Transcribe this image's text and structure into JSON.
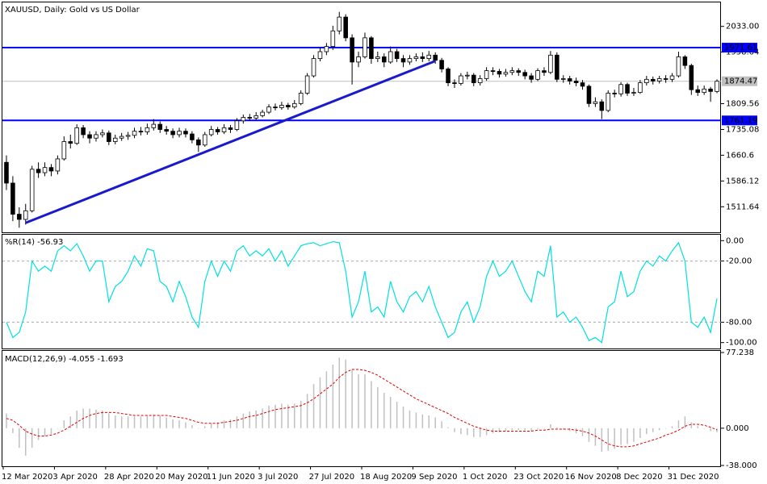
{
  "chart_data": [
    {
      "type": "candlestick",
      "title": "XAUUSD, Daily:  Gold vs US Dollar",
      "categories": [
        "12 Mar 2020",
        null,
        null,
        null,
        null,
        null,
        null,
        null,
        "3 Apr 2020",
        null,
        null,
        null,
        null,
        null,
        null,
        null,
        "28 Apr 2020",
        null,
        null,
        null,
        null,
        null,
        null,
        null,
        "20 May 2020",
        null,
        null,
        null,
        null,
        null,
        null,
        null,
        "11 Jun 2020",
        null,
        null,
        null,
        null,
        null,
        null,
        null,
        "3 Jul 2020",
        null,
        null,
        null,
        null,
        null,
        null,
        null,
        "27 Jul 2020",
        null,
        null,
        null,
        null,
        null,
        null,
        null,
        "18 Aug 2020",
        null,
        null,
        null,
        null,
        null,
        null,
        null,
        "9 Sep 2020",
        null,
        null,
        null,
        null,
        null,
        null,
        null,
        "1 Oct 2020",
        null,
        null,
        null,
        null,
        null,
        null,
        null,
        "23 Oct 2020",
        null,
        null,
        null,
        null,
        null,
        null,
        null,
        "16 Nov 2020",
        null,
        null,
        null,
        null,
        null,
        null,
        null,
        "8 Dec 2020",
        null,
        null,
        null,
        null,
        null,
        null,
        null,
        "31 Dec 2020",
        null,
        null,
        null,
        null,
        null,
        null,
        null
      ],
      "open": [
        1640,
        1580,
        1490,
        1475,
        1500,
        1620,
        1610,
        1625,
        1615,
        1650,
        1700,
        1695,
        1740,
        1720,
        1710,
        1720,
        1725,
        1700,
        1710,
        1715,
        1718,
        1730,
        1728,
        1740,
        1750,
        1735,
        1730,
        1720,
        1730,
        1722,
        1705,
        1690,
        1720,
        1735,
        1728,
        1740,
        1735,
        1760,
        1770,
        1768,
        1775,
        1785,
        1800,
        1798,
        1805,
        1800,
        1810,
        1840,
        1890,
        1940,
        1960,
        1975,
        2020,
        2060,
        2000,
        1930,
        1945,
        2000,
        1940,
        1945,
        1930,
        1960,
        1940,
        1930,
        1940,
        1945,
        1940,
        1950,
        1935,
        1910,
        1870,
        1868,
        1890,
        1892,
        1870,
        1882,
        1905,
        1903,
        1895,
        1900,
        1905,
        1900,
        1890,
        1880,
        1905,
        1900,
        1950,
        1880,
        1882,
        1875,
        1870,
        1860,
        1810,
        1815,
        1790,
        1840,
        1838,
        1865,
        1840,
        1842,
        1870,
        1880,
        1875,
        1882,
        1880,
        1890,
        1945,
        1920,
        1850,
        1842,
        1852,
        1845
      ],
      "high": [
        1660,
        1600,
        1510,
        1520,
        1630,
        1640,
        1640,
        1635,
        1660,
        1715,
        1720,
        1750,
        1748,
        1730,
        1730,
        1735,
        1732,
        1720,
        1725,
        1728,
        1740,
        1742,
        1752,
        1765,
        1758,
        1745,
        1738,
        1740,
        1738,
        1730,
        1712,
        1728,
        1745,
        1742,
        1750,
        1748,
        1768,
        1778,
        1780,
        1785,
        1792,
        1808,
        1810,
        1815,
        1812,
        1820,
        1848,
        1898,
        1950,
        1972,
        1985,
        2035,
        2075,
        2068,
        2010,
        1960,
        2015,
        2005,
        1960,
        1955,
        1975,
        1968,
        1950,
        1950,
        1955,
        1958,
        1962,
        1958,
        1942,
        1915,
        1880,
        1898,
        1902,
        1898,
        1892,
        1915,
        1915,
        1910,
        1910,
        1915,
        1912,
        1908,
        1898,
        1912,
        1915,
        1962,
        1958,
        1892,
        1890,
        1885,
        1878,
        1865,
        1828,
        1822,
        1848,
        1850,
        1872,
        1870,
        1855,
        1878,
        1890,
        1888,
        1890,
        1892,
        1898,
        1960,
        1950,
        1925,
        1862,
        1862,
        1858,
        1880
      ],
      "low": [
        1560,
        1470,
        1451,
        1460,
        1495,
        1595,
        1600,
        1600,
        1605,
        1645,
        1680,
        1690,
        1710,
        1695,
        1700,
        1712,
        1690,
        1692,
        1702,
        1705,
        1710,
        1718,
        1720,
        1732,
        1725,
        1720,
        1710,
        1712,
        1712,
        1695,
        1670,
        1685,
        1715,
        1720,
        1722,
        1725,
        1730,
        1752,
        1760,
        1762,
        1770,
        1780,
        1790,
        1792,
        1792,
        1795,
        1805,
        1835,
        1885,
        1932,
        1950,
        1965,
        2010,
        1990,
        1865,
        1915,
        1940,
        1925,
        1930,
        1915,
        1925,
        1930,
        1915,
        1922,
        1932,
        1930,
        1932,
        1925,
        1900,
        1860,
        1855,
        1862,
        1880,
        1860,
        1862,
        1876,
        1892,
        1885,
        1888,
        1892,
        1890,
        1880,
        1870,
        1875,
        1890,
        1895,
        1872,
        1870,
        1865,
        1860,
        1850,
        1800,
        1800,
        1765,
        1785,
        1828,
        1830,
        1832,
        1832,
        1838,
        1862,
        1865,
        1868,
        1870,
        1872,
        1885,
        1910,
        1835,
        1832,
        1835,
        1815,
        1840
      ],
      "close": [
        1580,
        1490,
        1475,
        1500,
        1620,
        1610,
        1625,
        1615,
        1650,
        1700,
        1695,
        1740,
        1720,
        1710,
        1720,
        1725,
        1700,
        1710,
        1715,
        1718,
        1730,
        1728,
        1740,
        1750,
        1735,
        1730,
        1720,
        1730,
        1722,
        1705,
        1690,
        1720,
        1735,
        1728,
        1740,
        1735,
        1760,
        1770,
        1768,
        1775,
        1785,
        1800,
        1798,
        1805,
        1800,
        1810,
        1840,
        1890,
        1940,
        1960,
        1975,
        2020,
        2060,
        2000,
        1930,
        1945,
        2000,
        1940,
        1945,
        1930,
        1960,
        1940,
        1930,
        1940,
        1945,
        1940,
        1950,
        1935,
        1910,
        1870,
        1868,
        1890,
        1892,
        1870,
        1882,
        1905,
        1903,
        1895,
        1900,
        1905,
        1900,
        1890,
        1880,
        1905,
        1900,
        1950,
        1880,
        1882,
        1875,
        1870,
        1860,
        1810,
        1815,
        1790,
        1840,
        1838,
        1865,
        1840,
        1842,
        1870,
        1880,
        1875,
        1882,
        1880,
        1890,
        1945,
        1920,
        1850,
        1842,
        1852,
        1845,
        1874.47
      ],
      "ylim": [
        1440,
        2100
      ],
      "yticks": [
        {
          "value": 2033,
          "label": "2033.00"
        },
        1958.64,
        1809.56,
        1735.08,
        1660.6,
        1586.12,
        1511.64
      ],
      "levels": [
        {
          "value": 1971.61,
          "color": "#0000ff"
        },
        {
          "value": 1761.19,
          "color": "#0000ff"
        }
      ],
      "last_price": {
        "value": 1874.47,
        "color": "#c0c0c0"
      },
      "trendline": {
        "x": [
          3,
          67
        ],
        "y": [
          1465,
          1933
        ],
        "color": "#1a1acd"
      }
    },
    {
      "type": "line",
      "title": "%R(14) -56.93",
      "color": "#00e0e0",
      "values": [
        -80,
        -95,
        -90,
        -70,
        -20,
        -30,
        -25,
        -30,
        -10,
        -5,
        -10,
        -3,
        -15,
        -30,
        -20,
        -20,
        -60,
        -45,
        -40,
        -30,
        -15,
        -25,
        -8,
        -10,
        -40,
        -45,
        -60,
        -40,
        -55,
        -75,
        -85,
        -40,
        -20,
        -35,
        -20,
        -30,
        -10,
        -5,
        -15,
        -10,
        -15,
        -8,
        -20,
        -10,
        -25,
        -15,
        -5,
        -3,
        -2,
        -5,
        -3,
        -1,
        -2,
        -30,
        -75,
        -60,
        -30,
        -70,
        -65,
        -75,
        -40,
        -60,
        -70,
        -55,
        -50,
        -60,
        -45,
        -65,
        -80,
        -95,
        -90,
        -70,
        -60,
        -80,
        -65,
        -35,
        -20,
        -35,
        -30,
        -20,
        -35,
        -50,
        -60,
        -30,
        -35,
        -5,
        -75,
        -70,
        -80,
        -75,
        -85,
        -98,
        -95,
        -100,
        -65,
        -60,
        -30,
        -55,
        -50,
        -30,
        -20,
        -25,
        -15,
        -20,
        -10,
        -2,
        -20,
        -80,
        -85,
        -75,
        -90,
        -56.93
      ],
      "ylim": [
        -105,
        5
      ],
      "yticks": [
        {
          "value": 0,
          "label": "0.00"
        },
        {
          "value": -20,
          "label": "-20.00"
        },
        {
          "value": -80,
          "label": "-80.00"
        },
        {
          "value": -100,
          "label": "-100.00"
        }
      ],
      "dashed_levels": [
        -20,
        -80
      ]
    },
    {
      "type": "macd",
      "title": "MACD(12,26,9) -4.055 -1.693",
      "histogram": {
        "color": "#c0c0c0",
        "values": [
          15,
          -5,
          -20,
          -28,
          -20,
          -12,
          -8,
          -6,
          0,
          8,
          12,
          18,
          20,
          20,
          19,
          18,
          15,
          13,
          12,
          12,
          12,
          12,
          13,
          14,
          13,
          11,
          9,
          8,
          6,
          3,
          0,
          2,
          5,
          6,
          8,
          9,
          12,
          15,
          17,
          18,
          20,
          23,
          24,
          25,
          24,
          25,
          28,
          35,
          45,
          52,
          58,
          65,
          72,
          70,
          60,
          55,
          55,
          48,
          42,
          36,
          32,
          27,
          22,
          18,
          16,
          14,
          13,
          11,
          7,
          1,
          -4,
          -6,
          -7,
          -9,
          -9,
          -7,
          -5,
          -4,
          -3,
          -2,
          -2,
          -2,
          -3,
          -1,
          0,
          4,
          1,
          -1,
          -3,
          -5,
          -8,
          -14,
          -18,
          -24,
          -23,
          -21,
          -17,
          -16,
          -14,
          -10,
          -6,
          -4,
          -2,
          0,
          2,
          8,
          12,
          6,
          2,
          0,
          -3,
          -4.055
        ]
      },
      "signal": {
        "color": "#e00000",
        "values": [
          10,
          8,
          3,
          -3,
          -6,
          -8,
          -8,
          -7,
          -5,
          -2,
          2,
          6,
          10,
          13,
          15,
          16,
          16,
          16,
          15,
          14,
          13,
          13,
          13,
          13,
          13,
          13,
          12,
          11,
          10,
          8,
          6,
          5,
          5,
          5,
          6,
          7,
          8,
          10,
          12,
          13,
          15,
          17,
          19,
          20,
          21,
          22,
          23,
          26,
          30,
          35,
          40,
          45,
          52,
          57,
          60,
          60,
          59,
          57,
          54,
          50,
          46,
          42,
          38,
          34,
          30,
          27,
          24,
          21,
          18,
          15,
          11,
          8,
          5,
          2,
          0,
          -2,
          -3,
          -3,
          -3,
          -3,
          -3,
          -3,
          -3,
          -2,
          -2,
          -1,
          -1,
          -1,
          -1,
          -2,
          -3,
          -5,
          -8,
          -12,
          -16,
          -18,
          -19,
          -19,
          -18,
          -16,
          -14,
          -12,
          -10,
          -7,
          -5,
          -2,
          2,
          4,
          4,
          3,
          1,
          -1.693
        ]
      },
      "ylim": [
        -38,
        77.238
      ],
      "yticks": [
        {
          "value": 77.238,
          "label": "77.238"
        },
        {
          "value": 0,
          "label": "0.000"
        },
        {
          "value": -38,
          "label": "-38.000"
        }
      ]
    }
  ]
}
